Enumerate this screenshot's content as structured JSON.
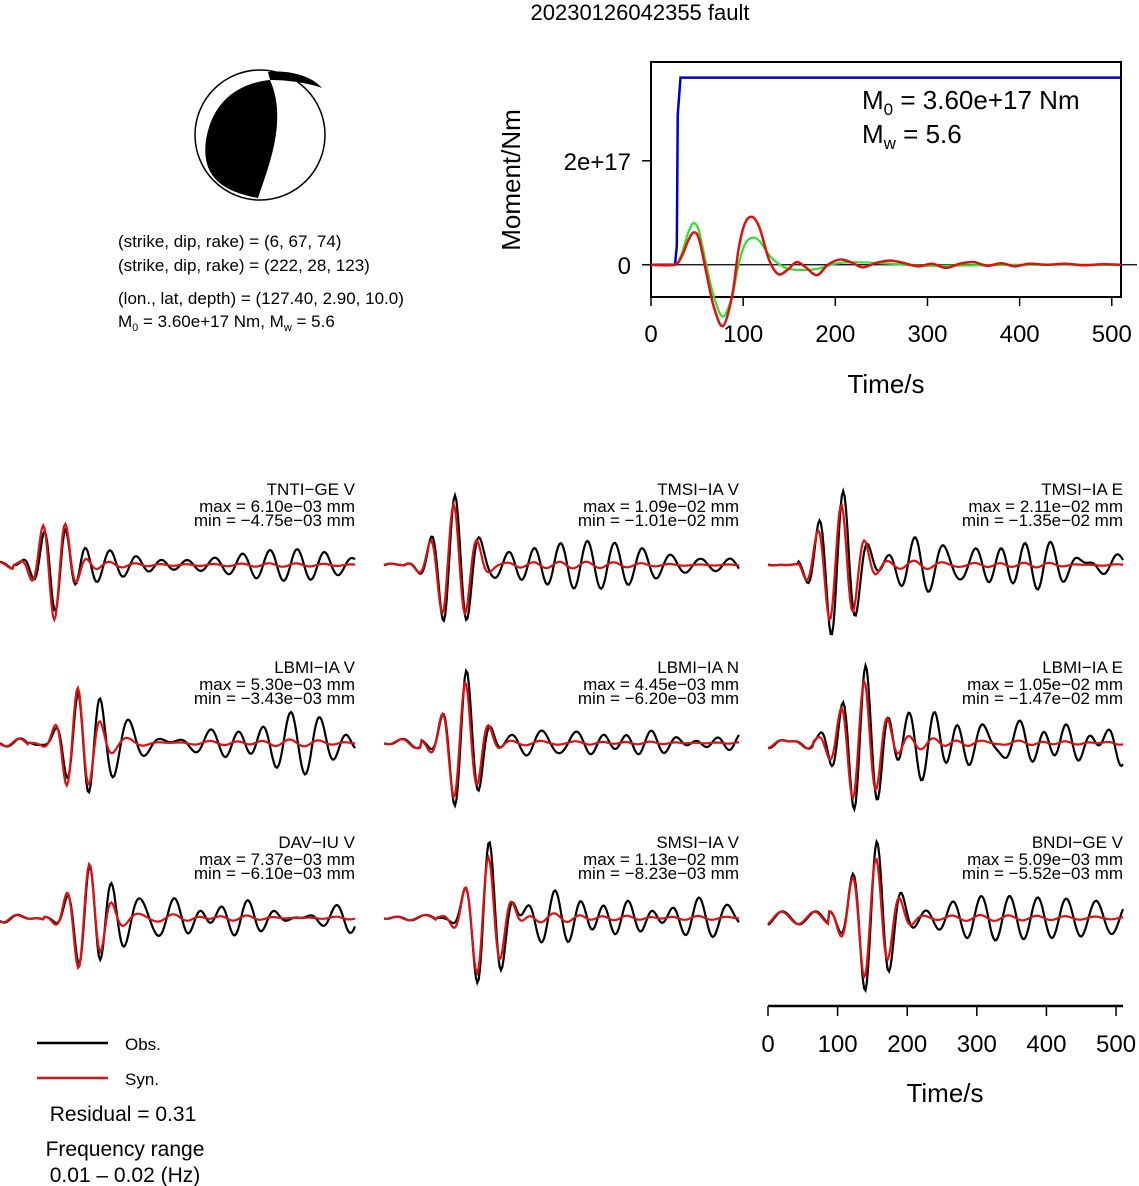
{
  "title": "20230126042355 fault",
  "info": {
    "strike_dip_rake_1": "(strike, dip, rake) = (6, 67, 74)",
    "strike_dip_rake_2": "(strike, dip, rake) = (222, 28, 123)",
    "location": "(lon., lat, depth) = (127.40, 2.90, 10.0)",
    "moment_prefix": "M",
    "moment_sub": "0",
    "moment_mid": " = 3.60e+17 Nm, M",
    "mw_sub": "w",
    "mw_value": " = 5.6"
  },
  "colors": {
    "observed": "#000000",
    "synthetic": "#dd1111",
    "moment_rate_green": "#33dd33",
    "cumulative_moment_blue": "#0000cc"
  },
  "legend": {
    "observed_label": "Obs.",
    "synthetic_label": "Syn.",
    "residual": "Residual = 0.31",
    "frequency_label": "Frequency range",
    "frequency_value": "0.01 – 0.02 (Hz)"
  },
  "chart_data": [
    {
      "type": "line",
      "name": "moment-function",
      "xlabel": "Time/s",
      "ylabel": "Moment/Nm",
      "xlim": [
        0,
        510
      ],
      "ylim": [
        -6.2e+16,
        3.9e+17
      ],
      "xticks": [
        0,
        100,
        200,
        300,
        400,
        500
      ],
      "yticks": [
        {
          "value": 0,
          "label": "0"
        },
        {
          "value": 2e+17,
          "label": "2e+17"
        }
      ],
      "annotation_m0": {
        "prefix": "M",
        "sub": "0",
        "rest": " = 3.60e+17 Nm"
      },
      "annotation_mw": {
        "prefix": "M",
        "sub": "w",
        "rest": " = 5.6"
      },
      "cumulative": {
        "onset": 28,
        "final": 3.6e+17
      },
      "moment_rate_green": [
        [
          0,
          0
        ],
        [
          25,
          0
        ],
        [
          33,
          2e+16
        ],
        [
          40,
          6e+16
        ],
        [
          46,
          8e+16
        ],
        [
          52,
          6.5e+16
        ],
        [
          60,
          0
        ],
        [
          68,
          -6e+16
        ],
        [
          78,
          -1e+17
        ],
        [
          88,
          -6e+16
        ],
        [
          95,
          0
        ],
        [
          102,
          4e+16
        ],
        [
          110,
          5.2e+16
        ],
        [
          118,
          4.5e+16
        ],
        [
          130,
          1.5e+16
        ],
        [
          145,
          -5000000000000000.0
        ],
        [
          160,
          -1e+16
        ],
        [
          180,
          -8000000000000000.0
        ],
        [
          200,
          2000000000000000.0
        ],
        [
          220,
          5000000000000000.0
        ],
        [
          260,
          2000000000000000.0
        ],
        [
          300,
          -2000000000000000.0
        ],
        [
          400,
          0
        ],
        [
          510,
          0
        ]
      ],
      "moment_rate_red": [
        [
          0,
          0
        ],
        [
          25,
          0
        ],
        [
          33,
          1.5e+16
        ],
        [
          40,
          4.5e+16
        ],
        [
          46,
          6.2e+16
        ],
        [
          52,
          5e+16
        ],
        [
          60,
          -1.5e+16
        ],
        [
          68,
          -8e+16
        ],
        [
          78,
          -1.18e+17
        ],
        [
          88,
          -6e+16
        ],
        [
          95,
          3e+16
        ],
        [
          102,
          8e+16
        ],
        [
          110,
          9.2e+16
        ],
        [
          118,
          7e+16
        ],
        [
          128,
          1e+16
        ],
        [
          138,
          -1.8e+16
        ],
        [
          148,
          -1e+16
        ],
        [
          158,
          5000000000000000.0
        ],
        [
          168,
          -5000000000000000.0
        ],
        [
          180,
          -2e+16
        ],
        [
          192,
          0
        ],
        [
          205,
          1e+16
        ],
        [
          218,
          4000000000000000.0
        ],
        [
          230,
          -5000000000000000.0
        ],
        [
          245,
          4000000000000000.0
        ],
        [
          260,
          8000000000000000.0
        ],
        [
          275,
          3000000000000000.0
        ],
        [
          290,
          -3000000000000000.0
        ],
        [
          305,
          2000000000000000.0
        ],
        [
          320,
          -6000000000000000.0
        ],
        [
          335,
          2000000000000000.0
        ],
        [
          350,
          5000000000000000.0
        ],
        [
          365,
          -2000000000000000.0
        ],
        [
          380,
          3000000000000000.0
        ],
        [
          395,
          -3000000000000000.0
        ],
        [
          410,
          2000000000000000.0
        ],
        [
          430,
          0
        ],
        [
          450,
          2000000000000000.0
        ],
        [
          470,
          -1000000000000000.0
        ],
        [
          490,
          1000000000000000.0
        ],
        [
          510,
          0
        ]
      ]
    },
    {
      "type": "line",
      "name": "waveform-comparison",
      "xlabel": "Time/s",
      "xlim": [
        0,
        510
      ],
      "xticks": [
        0,
        100,
        200,
        300,
        400,
        500
      ],
      "stations": [
        {
          "label": "TNTI−GE V",
          "max": "max = 6.10e−03 mm",
          "min": "min = −4.75e−03 mm"
        },
        {
          "label": "TMSI−IA V",
          "max": "max = 1.09e−02 mm",
          "min": "min = −1.01e−02 mm"
        },
        {
          "label": "TMSI−IA E",
          "max": "max = 2.11e−02 mm",
          "min": "min = −1.35e−02 mm"
        },
        {
          "label": "LBMI−IA V",
          "max": "max = 5.30e−03 mm",
          "min": "min = −3.43e−03 mm"
        },
        {
          "label": "LBMI−IA N",
          "max": "max = 4.45e−03 mm",
          "min": "min = −6.20e−03 mm"
        },
        {
          "label": "LBMI−IA E",
          "max": "max = 1.05e−02 mm",
          "min": "min = −1.47e−02 mm"
        },
        {
          "label": "DAV−IU V",
          "max": "max = 7.37e−03 mm",
          "min": "min = −6.10e−03 mm"
        },
        {
          "label": "SMSI−IA V",
          "max": "max = 1.13e−02 mm",
          "min": "min = −8.23e−03 mm"
        },
        {
          "label": "BNDI−GE V",
          "max": "max = 5.09e−03 mm",
          "min": "min = −5.52e−03 mm"
        }
      ]
    }
  ]
}
